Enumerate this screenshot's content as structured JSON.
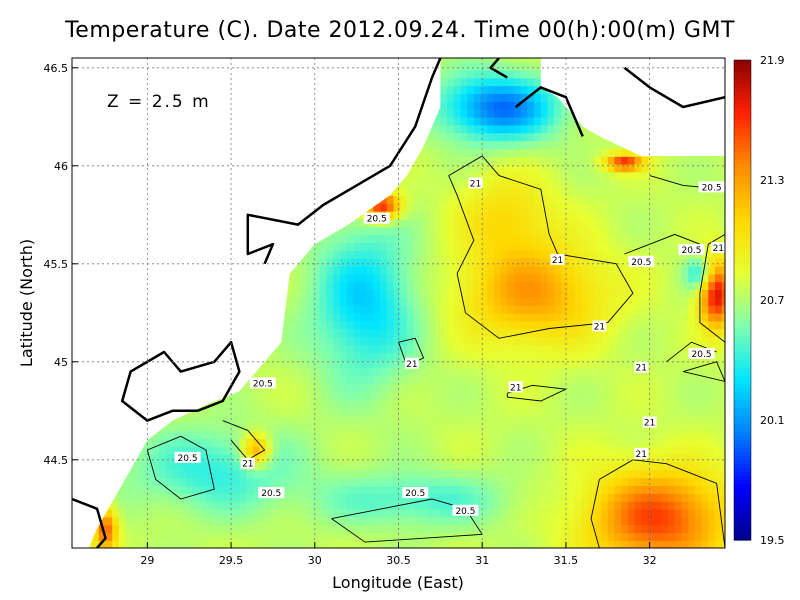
{
  "chart_data": {
    "type": "heatmap",
    "title": "Temperature (C). Date 2012.09.24. Time 00(h):00(m) GMT",
    "annotation": "Z = 2.5 m",
    "xlabel": "Longitude (East)",
    "ylabel": "Latitude (North)",
    "xlim": [
      28.55,
      32.45
    ],
    "ylim": [
      44.05,
      46.55
    ],
    "xticks": [
      "29",
      "29.5",
      "30",
      "30.5",
      "31",
      "31.5",
      "32"
    ],
    "xtick_values": [
      29,
      29.5,
      30,
      30.5,
      31,
      31.5,
      32
    ],
    "yticks": [
      "44.5",
      "45",
      "45.5",
      "46",
      "46.5"
    ],
    "ytick_values": [
      44.5,
      45,
      45.5,
      46,
      46.5
    ],
    "grid": true,
    "colorbar": {
      "ticks": [
        "21.9",
        "21.3",
        "20.7",
        "20.1",
        "19.5"
      ],
      "tick_values": [
        21.9,
        21.3,
        20.7,
        20.1,
        19.5
      ],
      "min": 19.5,
      "max": 21.9,
      "colors": [
        "#00008b",
        "#0000ff",
        "#0080ff",
        "#00e5ff",
        "#7fffb0",
        "#e6ff33",
        "#ffd700",
        "#ff8c00",
        "#ff2200",
        "#8b0000"
      ]
    },
    "contour_labels": [
      {
        "text": "21",
        "x": 30.96,
        "y": 45.91
      },
      {
        "text": "20.5",
        "x": 32.37,
        "y": 45.89
      },
      {
        "text": "20.5",
        "x": 32.25,
        "y": 45.57
      },
      {
        "text": "21",
        "x": 32.41,
        "y": 45.58
      },
      {
        "text": "20.5",
        "x": 31.95,
        "y": 45.51
      },
      {
        "text": "21",
        "x": 31.45,
        "y": 45.52
      },
      {
        "text": "20.5",
        "x": 30.37,
        "y": 45.73
      },
      {
        "text": "21",
        "x": 31.7,
        "y": 45.18
      },
      {
        "text": "20.5",
        "x": 32.31,
        "y": 45.04
      },
      {
        "text": "21",
        "x": 30.58,
        "y": 44.99
      },
      {
        "text": "21",
        "x": 31.95,
        "y": 44.97
      },
      {
        "text": "21",
        "x": 31.2,
        "y": 44.87
      },
      {
        "text": "20.5",
        "x": 29.69,
        "y": 44.89
      },
      {
        "text": "21",
        "x": 32,
        "y": 44.69
      },
      {
        "text": "21",
        "x": 31.95,
        "y": 44.53
      },
      {
        "text": "20.5",
        "x": 29.24,
        "y": 44.51
      },
      {
        "text": "21",
        "x": 29.6,
        "y": 44.48
      },
      {
        "text": "20.5",
        "x": 29.74,
        "y": 44.33
      },
      {
        "text": "20.5",
        "x": 30.6,
        "y": 44.33
      },
      {
        "text": "20.5",
        "x": 30.9,
        "y": 44.24
      }
    ],
    "field_centers": [
      {
        "x": 31.3,
        "y": 45.35,
        "v": 21.3,
        "sx": 0.3,
        "sy": 0.18
      },
      {
        "x": 31.15,
        "y": 45.75,
        "v": 21.05,
        "sx": 0.2,
        "sy": 0.15
      },
      {
        "x": 32.05,
        "y": 44.2,
        "v": 21.55,
        "sx": 0.3,
        "sy": 0.18
      },
      {
        "x": 32.4,
        "y": 45.35,
        "v": 21.75,
        "sx": 0.07,
        "sy": 0.12
      },
      {
        "x": 32.3,
        "y": 45.45,
        "v": 20.3,
        "sx": 0.06,
        "sy": 0.06
      },
      {
        "x": 30.3,
        "y": 45.3,
        "v": 20.25,
        "sx": 0.22,
        "sy": 0.28
      },
      {
        "x": 31.1,
        "y": 46.3,
        "v": 20.0,
        "sx": 0.25,
        "sy": 0.12
      },
      {
        "x": 30.6,
        "y": 44.3,
        "v": 20.45,
        "sx": 0.4,
        "sy": 0.1
      },
      {
        "x": 29.4,
        "y": 44.45,
        "v": 20.4,
        "sx": 0.35,
        "sy": 0.15
      },
      {
        "x": 30.4,
        "y": 45.8,
        "v": 21.7,
        "sx": 0.08,
        "sy": 0.05
      },
      {
        "x": 28.75,
        "y": 44.15,
        "v": 21.5,
        "sx": 0.05,
        "sy": 0.08
      },
      {
        "x": 31.85,
        "y": 46.02,
        "v": 21.6,
        "sx": 0.08,
        "sy": 0.03
      },
      {
        "x": 29.65,
        "y": 44.55,
        "v": 21.4,
        "sx": 0.06,
        "sy": 0.06
      }
    ]
  }
}
